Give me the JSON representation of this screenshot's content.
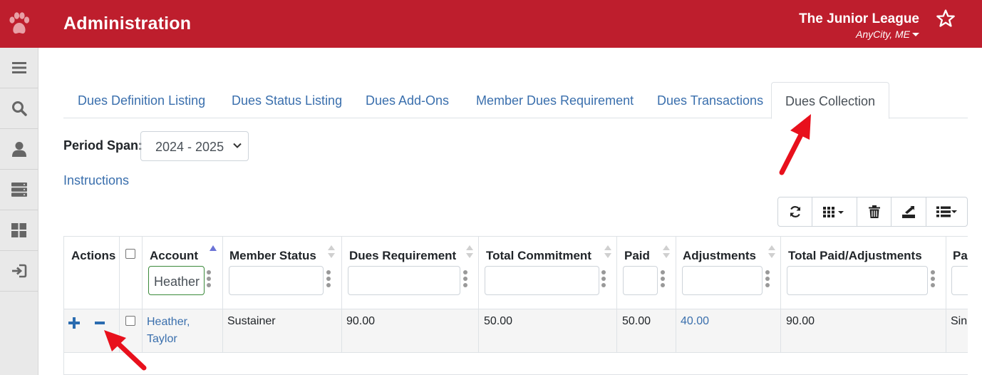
{
  "header": {
    "app_title": "Administration",
    "org_name": "The Junior League",
    "org_city": "AnyCity, ME",
    "bg_color": "#be1e2d"
  },
  "sidebar": {
    "items": [
      {
        "icon": "menu-icon"
      },
      {
        "icon": "search-icon"
      },
      {
        "icon": "user-icon"
      },
      {
        "icon": "server-icon"
      },
      {
        "icon": "dashboard-icon"
      },
      {
        "icon": "sign-in-icon"
      }
    ]
  },
  "tabs": [
    {
      "label": "Dues Definition Listing",
      "active": false
    },
    {
      "label": "Dues Status Listing",
      "active": false
    },
    {
      "label": "Dues Add-Ons",
      "active": false
    },
    {
      "label": "Member Dues Requirement",
      "active": false
    },
    {
      "label": "Dues Transactions",
      "active": false
    },
    {
      "label": "Dues Collection",
      "active": true
    }
  ],
  "period": {
    "label": "Period Span:",
    "selected": "2024 - 2025"
  },
  "instructions_link": "Instructions",
  "toolbar": {
    "buttons": [
      "refresh-icon",
      "columns-icon",
      "trash-icon",
      "export-icon",
      "list-icon"
    ]
  },
  "table": {
    "columns": [
      {
        "label": "Actions"
      },
      {
        "label": ""
      },
      {
        "label": "Account",
        "filter": "Heather"
      },
      {
        "label": "Member Status",
        "filter": ""
      },
      {
        "label": "Dues Requirement",
        "filter": ""
      },
      {
        "label": "Total Commitment",
        "filter": ""
      },
      {
        "label": "Paid",
        "filter": ""
      },
      {
        "label": "Adjustments",
        "filter": ""
      },
      {
        "label": "Total Paid/Adjustments",
        "filter": ""
      },
      {
        "label": "Pa"
      }
    ],
    "rows": [
      {
        "account_line1": "Heather,",
        "account_line2": "Taylor",
        "member_status": "Sustainer",
        "dues_requirement": "90.00",
        "total_commitment": "50.00",
        "paid": "50.00",
        "adjustments": "40.00",
        "total_paid_adjustments": "90.00",
        "payment": "Sin"
      }
    ]
  },
  "accent_link_color": "#3a6fad",
  "annotation_color": "#e8101c"
}
